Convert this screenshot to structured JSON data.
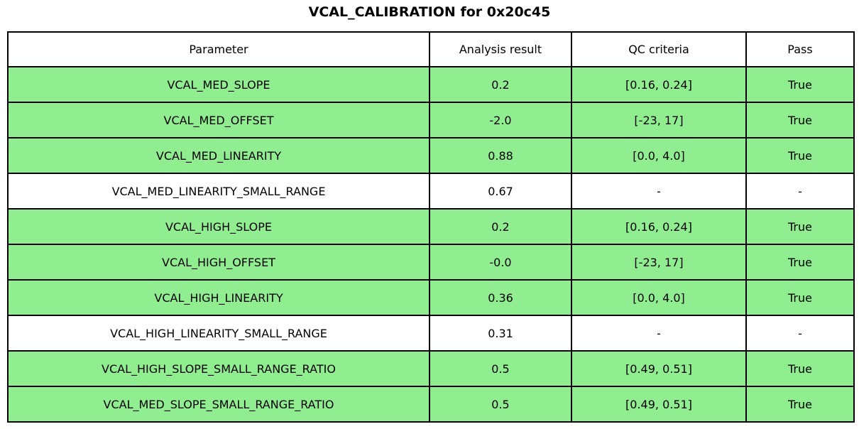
{
  "figure": {
    "title": "VCAL_CALIBRATION for 0x20c45"
  },
  "colors": {
    "pass_row_green": "#90EE90",
    "no_qc_row_white": "#FFFFFF",
    "border_black": "#000000",
    "text_black": "#000000"
  },
  "chart_data": {
    "type": "table",
    "title": "VCAL_CALIBRATION for 0x20c45",
    "columns": [
      "Parameter",
      "Analysis result",
      "QC criteria",
      "Pass"
    ],
    "rows": [
      {
        "parameter": "VCAL_MED_SLOPE",
        "analysis_result": "0.2",
        "qc_criteria": "[0.16, 0.24]",
        "pass": "True",
        "highlight_green": true
      },
      {
        "parameter": "VCAL_MED_OFFSET",
        "analysis_result": "-2.0",
        "qc_criteria": "[-23, 17]",
        "pass": "True",
        "highlight_green": true
      },
      {
        "parameter": "VCAL_MED_LINEARITY",
        "analysis_result": "0.88",
        "qc_criteria": "[0.0, 4.0]",
        "pass": "True",
        "highlight_green": true
      },
      {
        "parameter": "VCAL_MED_LINEARITY_SMALL_RANGE",
        "analysis_result": "0.67",
        "qc_criteria": "-",
        "pass": "-",
        "highlight_green": false
      },
      {
        "parameter": "VCAL_HIGH_SLOPE",
        "analysis_result": "0.2",
        "qc_criteria": "[0.16, 0.24]",
        "pass": "True",
        "highlight_green": true
      },
      {
        "parameter": "VCAL_HIGH_OFFSET",
        "analysis_result": "-0.0",
        "qc_criteria": "[-23, 17]",
        "pass": "True",
        "highlight_green": true
      },
      {
        "parameter": "VCAL_HIGH_LINEARITY",
        "analysis_result": "0.36",
        "qc_criteria": "[0.0, 4.0]",
        "pass": "True",
        "highlight_green": true
      },
      {
        "parameter": "VCAL_HIGH_LINEARITY_SMALL_RANGE",
        "analysis_result": "0.31",
        "qc_criteria": "-",
        "pass": "-",
        "highlight_green": false
      },
      {
        "parameter": "VCAL_HIGH_SLOPE_SMALL_RANGE_RATIO",
        "analysis_result": "0.5",
        "qc_criteria": "[0.49, 0.51]",
        "pass": "True",
        "highlight_green": true
      },
      {
        "parameter": "VCAL_MED_SLOPE_SMALL_RANGE_RATIO",
        "analysis_result": "0.5",
        "qc_criteria": "[0.49, 0.51]",
        "pass": "True",
        "highlight_green": true
      }
    ],
    "layout_hints": {
      "header_background": "#FFFFFF",
      "pass_row_background": "#90EE90",
      "grid": "all-cell-borders"
    }
  }
}
